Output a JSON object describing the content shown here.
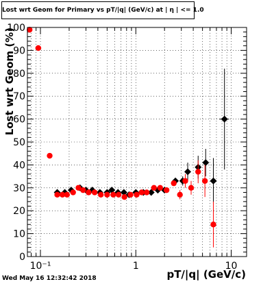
{
  "title": "Lost wrt Geom for Primary vs pT/|q| (GeV/c) at |  η | <= 1.0",
  "timestamp": "Wed May 16 12:32:42 2018",
  "chart_data": {
    "type": "scatter",
    "title": "Lost wrt Geom for Primary vs pT/|q| (GeV/c) at |  η | <= 1.0",
    "xlabel": "pT/|q| (GeV/c)",
    "ylabel": "Lost wrt Geom (%)",
    "xscale": "log",
    "xlim": [
      0.073,
      14.5
    ],
    "ylim": [
      0,
      100
    ],
    "grid": true,
    "legend": "none",
    "x_ticks": [
      {
        "value": 0.1,
        "label": "10⁻¹"
      },
      {
        "value": 1,
        "label": "1"
      },
      {
        "value": 10,
        "label": "10"
      }
    ],
    "y_ticks": [
      0,
      10,
      20,
      30,
      40,
      50,
      60,
      70,
      80,
      90,
      100
    ],
    "series": [
      {
        "color": "#000000",
        "marker": "diamond",
        "points": [
          {
            "x": 0.15,
            "y": 28,
            "xerr": 0.01,
            "yerr": 0
          },
          {
            "x": 0.18,
            "y": 28,
            "xerr": 0.01,
            "yerr": 0
          },
          {
            "x": 0.21,
            "y": 29,
            "xerr": 0.01,
            "yerr": 0
          },
          {
            "x": 0.26,
            "y": 30,
            "xerr": 0.01,
            "yerr": 0
          },
          {
            "x": 0.3,
            "y": 29,
            "xerr": 0.01,
            "yerr": 0
          },
          {
            "x": 0.35,
            "y": 29,
            "xerr": 0.01,
            "yerr": 0
          },
          {
            "x": 0.42,
            "y": 28,
            "xerr": 0.01,
            "yerr": 0
          },
          {
            "x": 0.5,
            "y": 28,
            "xerr": 0.01,
            "yerr": 0
          },
          {
            "x": 0.56,
            "y": 29,
            "xerr": 0.01,
            "yerr": 0
          },
          {
            "x": 0.65,
            "y": 28,
            "xerr": 0.01,
            "yerr": 0
          },
          {
            "x": 0.75,
            "y": 28,
            "xerr": 0.01,
            "yerr": 0
          },
          {
            "x": 0.85,
            "y": 27,
            "xerr": 0.01,
            "yerr": 0
          },
          {
            "x": 1.0,
            "y": 28,
            "xerr": 0.02,
            "yerr": 0
          },
          {
            "x": 1.2,
            "y": 28,
            "xerr": 0.02,
            "yerr": 0
          },
          {
            "x": 1.45,
            "y": 28,
            "xerr": 0.02,
            "yerr": 0
          },
          {
            "x": 1.7,
            "y": 29,
            "xerr": 0.02,
            "yerr": 0
          },
          {
            "x": 2.0,
            "y": 29,
            "xerr": 0.02,
            "yerr": 0
          },
          {
            "x": 2.6,
            "y": 33,
            "xerr": 0.1,
            "yerr": 1
          },
          {
            "x": 3.1,
            "y": 33,
            "xerr": 0.1,
            "yerr": 2
          },
          {
            "x": 3.5,
            "y": 37,
            "xerr": 0.15,
            "yerr": 4
          },
          {
            "x": 4.5,
            "y": 39,
            "xerr": 0.2,
            "yerr": 5
          },
          {
            "x": 5.4,
            "y": 41,
            "xerr": 0.3,
            "yerr": 6
          },
          {
            "x": 6.5,
            "y": 33,
            "xerr": 0.3,
            "yerr": 10
          },
          {
            "x": 8.5,
            "y": 60,
            "xerr": 1.0,
            "yerr": 22
          }
        ]
      },
      {
        "color": "#ff0000",
        "marker": "circle",
        "points": [
          {
            "x": 0.077,
            "y": 99,
            "xerr": 0.002,
            "yerr": 0
          },
          {
            "x": 0.095,
            "y": 91,
            "xerr": 0.007,
            "yerr": 0
          },
          {
            "x": 0.125,
            "y": 44,
            "xerr": 0.006,
            "yerr": 0
          },
          {
            "x": 0.15,
            "y": 27,
            "xerr": 0.006,
            "yerr": 0
          },
          {
            "x": 0.17,
            "y": 27,
            "xerr": 0.006,
            "yerr": 0
          },
          {
            "x": 0.19,
            "y": 27,
            "xerr": 0.006,
            "yerr": 0
          },
          {
            "x": 0.22,
            "y": 28,
            "xerr": 0.006,
            "yerr": 0
          },
          {
            "x": 0.25,
            "y": 30,
            "xerr": 0.006,
            "yerr": 0
          },
          {
            "x": 0.28,
            "y": 29,
            "xerr": 0.006,
            "yerr": 0
          },
          {
            "x": 0.32,
            "y": 28,
            "xerr": 0.006,
            "yerr": 0
          },
          {
            "x": 0.37,
            "y": 28,
            "xerr": 0.006,
            "yerr": 0
          },
          {
            "x": 0.43,
            "y": 27,
            "xerr": 0.006,
            "yerr": 0
          },
          {
            "x": 0.5,
            "y": 27,
            "xerr": 0.006,
            "yerr": 0
          },
          {
            "x": 0.58,
            "y": 27,
            "xerr": 0.006,
            "yerr": 0
          },
          {
            "x": 0.66,
            "y": 27,
            "xerr": 0.006,
            "yerr": 0
          },
          {
            "x": 0.76,
            "y": 26,
            "xerr": 0.006,
            "yerr": 0
          },
          {
            "x": 0.88,
            "y": 27,
            "xerr": 0.006,
            "yerr": 0
          },
          {
            "x": 1.02,
            "y": 27,
            "xerr": 0.01,
            "yerr": 0
          },
          {
            "x": 1.15,
            "y": 28,
            "xerr": 0.01,
            "yerr": 0
          },
          {
            "x": 1.3,
            "y": 28,
            "xerr": 0.01,
            "yerr": 0
          },
          {
            "x": 1.55,
            "y": 30,
            "xerr": 0.01,
            "yerr": 0
          },
          {
            "x": 1.8,
            "y": 30,
            "xerr": 0.01,
            "yerr": 0
          },
          {
            "x": 2.1,
            "y": 29,
            "xerr": 0.01,
            "yerr": 0
          },
          {
            "x": 2.5,
            "y": 32,
            "xerr": 0.08,
            "yerr": 1
          },
          {
            "x": 2.9,
            "y": 27,
            "xerr": 0.1,
            "yerr": 2
          },
          {
            "x": 3.3,
            "y": 33,
            "xerr": 0.12,
            "yerr": 3
          },
          {
            "x": 3.8,
            "y": 30,
            "xerr": 0.15,
            "yerr": 3
          },
          {
            "x": 4.5,
            "y": 37,
            "xerr": 0.2,
            "yerr": 5
          },
          {
            "x": 5.3,
            "y": 33,
            "xerr": 0.25,
            "yerr": 7
          },
          {
            "x": 6.5,
            "y": 14,
            "xerr": 0.3,
            "yerr": 10
          }
        ]
      }
    ]
  }
}
